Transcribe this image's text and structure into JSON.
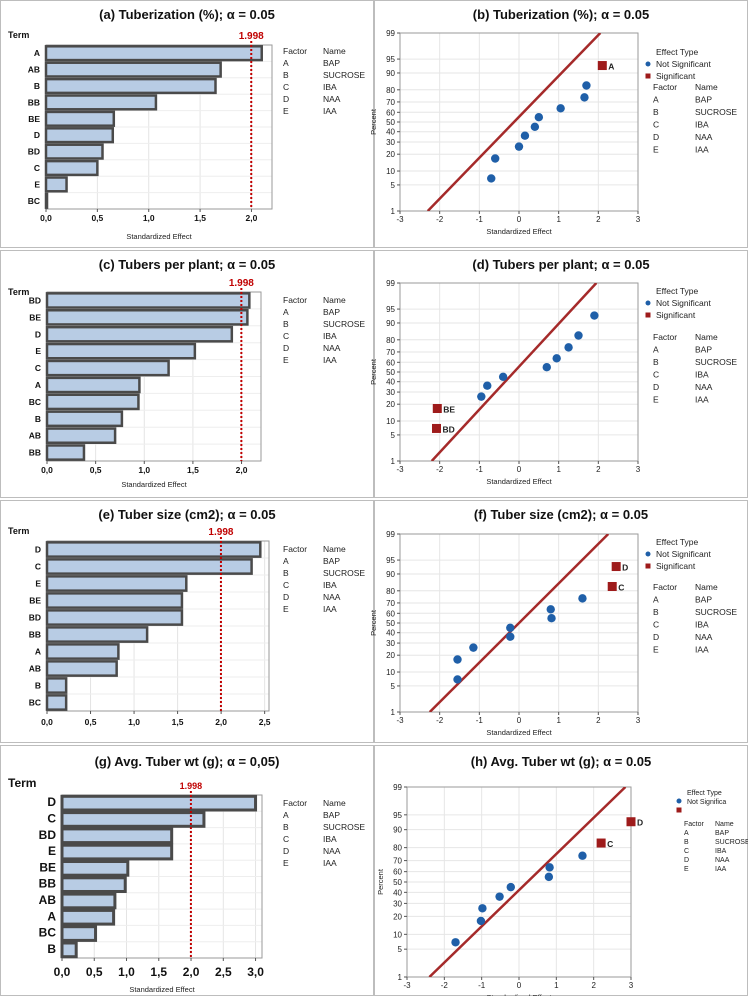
{
  "factors": [
    {
      "factor": "A",
      "name": "BAP"
    },
    {
      "factor": "B",
      "name": "SUCROSE"
    },
    {
      "factor": "C",
      "name": "IBA"
    },
    {
      "factor": "D",
      "name": "NAA"
    },
    {
      "factor": "E",
      "name": "IAA"
    }
  ],
  "legend_header": {
    "factor": "Factor",
    "name": "Name"
  },
  "effect_type": {
    "title": "Effect Type",
    "not_significant": "Not Significant",
    "not_significant_short": "Not Significa",
    "significant": "Significant"
  },
  "colors": {
    "bar_fill": "#b8cce4",
    "bar_stroke": "#4a4a4a",
    "ref_line": "#c00000",
    "fit_line": "#a52a2a",
    "point": "#1f5fa8",
    "sig_point": "#9e1b1b"
  },
  "chart_data": [
    {
      "id": "a",
      "type": "bar",
      "orientation": "horizontal",
      "title": "(a) Tuberization (%); α = 0.05",
      "xlabel": "Standardized Effect",
      "ylabel": "Term",
      "categories": [
        "A",
        "AB",
        "B",
        "BB",
        "BE",
        "D",
        "BD",
        "C",
        "E",
        "BC"
      ],
      "values": [
        2.1,
        1.7,
        1.65,
        1.07,
        0.66,
        0.65,
        0.55,
        0.5,
        0.2,
        0.01
      ],
      "xlim": [
        0,
        2.2
      ],
      "xticks": [
        0,
        0.5,
        1,
        1.5,
        2
      ],
      "xtick_labels": [
        "0,0",
        "0,5",
        "1,0",
        "1,5",
        "2,0"
      ],
      "reference": 1.998,
      "reference_label": "1.998"
    },
    {
      "id": "b",
      "type": "scatter",
      "subtype": "normal-probability",
      "title": "(b) Tuberization (%); α = 0.05",
      "xlabel": "Standardized Effect",
      "ylabel": "Percent",
      "xlim": [
        -3,
        3
      ],
      "xticks": [
        -3,
        -2,
        -1,
        0,
        1,
        2,
        3
      ],
      "yticks": [
        1,
        5,
        10,
        20,
        30,
        40,
        50,
        60,
        70,
        80,
        90,
        95,
        99
      ],
      "not_significant": [
        {
          "x": -0.7,
          "p": 7
        },
        {
          "x": -0.6,
          "p": 17
        },
        {
          "x": 0,
          "p": 26
        },
        {
          "x": 0.15,
          "p": 36
        },
        {
          "x": 0.4,
          "p": 45
        },
        {
          "x": 0.5,
          "p": 55
        },
        {
          "x": 1.05,
          "p": 64
        },
        {
          "x": 1.65,
          "p": 74
        },
        {
          "x": 1.7,
          "p": 83
        }
      ],
      "significant": [
        {
          "x": 2.1,
          "p": 93,
          "label": "A"
        }
      ],
      "fit_line": [
        {
          "x": -2.3,
          "p": 1
        },
        {
          "x": 2.05,
          "p": 99
        }
      ]
    },
    {
      "id": "c",
      "type": "bar",
      "orientation": "horizontal",
      "title": "(c) Tubers per plant; α = 0.05",
      "xlabel": "Standardized Effect",
      "ylabel": "Term",
      "categories": [
        "BD",
        "BE",
        "D",
        "E",
        "C",
        "A",
        "BC",
        "B",
        "AB",
        "BB"
      ],
      "values": [
        2.08,
        2.06,
        1.9,
        1.52,
        1.25,
        0.95,
        0.94,
        0.77,
        0.7,
        0.38
      ],
      "xlim": [
        0,
        2.2
      ],
      "xticks": [
        0,
        0.5,
        1,
        1.5,
        2
      ],
      "xtick_labels": [
        "0,0",
        "0,5",
        "1,0",
        "1,5",
        "2,0"
      ],
      "reference": 1.998,
      "reference_label": "1.998"
    },
    {
      "id": "d",
      "type": "scatter",
      "subtype": "normal-probability",
      "title": "(d) Tubers per plant; α = 0.05",
      "xlabel": "Standardized Effect",
      "ylabel": "Percent",
      "xlim": [
        -3,
        3
      ],
      "xticks": [
        -3,
        -2,
        -1,
        0,
        1,
        2,
        3
      ],
      "yticks": [
        1,
        5,
        10,
        20,
        30,
        40,
        50,
        60,
        70,
        80,
        90,
        95,
        99
      ],
      "not_significant": [
        {
          "x": -0.95,
          "p": 26
        },
        {
          "x": -0.8,
          "p": 36
        },
        {
          "x": -0.4,
          "p": 45
        },
        {
          "x": 0.7,
          "p": 55
        },
        {
          "x": 0.95,
          "p": 64
        },
        {
          "x": 1.25,
          "p": 74
        },
        {
          "x": 1.5,
          "p": 83
        },
        {
          "x": 1.9,
          "p": 93
        }
      ],
      "significant": [
        {
          "x": -2.06,
          "p": 17,
          "label": "BE"
        },
        {
          "x": -2.08,
          "p": 7,
          "label": "BD"
        }
      ],
      "fit_line": [
        {
          "x": -2.2,
          "p": 1
        },
        {
          "x": 1.95,
          "p": 99
        }
      ]
    },
    {
      "id": "e",
      "type": "bar",
      "orientation": "horizontal",
      "title": "(e) Tuber size (cm2); α = 0.05",
      "xlabel": "",
      "ylabel": "Term",
      "categories": [
        "D",
        "C",
        "E",
        "BE",
        "BD",
        "BB",
        "A",
        "AB",
        "B",
        "BC"
      ],
      "values": [
        2.45,
        2.35,
        1.6,
        1.55,
        1.55,
        1.15,
        0.82,
        0.8,
        0.22,
        0.22
      ],
      "xlim": [
        0,
        2.55
      ],
      "xticks": [
        0,
        0.5,
        1,
        1.5,
        2,
        2.5
      ],
      "xtick_labels": [
        "0,0",
        "0,5",
        "1,0",
        "1,5",
        "2,0",
        "2,5"
      ],
      "reference": 1.998,
      "reference_label": "1.998"
    },
    {
      "id": "f",
      "type": "scatter",
      "subtype": "normal-probability",
      "title": "(f) Tuber size (cm2); α = 0.05",
      "xlabel": "Standardized Effect",
      "ylabel": "Percent",
      "xlim": [
        -3,
        3
      ],
      "xticks": [
        -3,
        -2,
        -1,
        0,
        1,
        2,
        3
      ],
      "yticks": [
        1,
        5,
        10,
        20,
        30,
        40,
        50,
        60,
        70,
        80,
        90,
        95,
        99
      ],
      "not_significant": [
        {
          "x": -1.55,
          "p": 7
        },
        {
          "x": -1.55,
          "p": 17
        },
        {
          "x": -1.15,
          "p": 26
        },
        {
          "x": -0.22,
          "p": 36
        },
        {
          "x": -0.22,
          "p": 45
        },
        {
          "x": 0.82,
          "p": 55
        },
        {
          "x": 0.8,
          "p": 64
        },
        {
          "x": 1.6,
          "p": 74
        }
      ],
      "significant": [
        {
          "x": 2.35,
          "p": 83,
          "label": "C"
        },
        {
          "x": 2.45,
          "p": 93,
          "label": "D"
        }
      ],
      "fit_line": [
        {
          "x": -2.25,
          "p": 1
        },
        {
          "x": 2.25,
          "p": 99
        }
      ]
    },
    {
      "id": "g",
      "type": "bar",
      "orientation": "horizontal",
      "title": "(g) Avg. Tuber wt (g); α = 0,05)",
      "xlabel": "Standardized Effect",
      "ylabel": "Term",
      "categories": [
        "D",
        "C",
        "BD",
        "E",
        "BE",
        "BB",
        "AB",
        "A",
        "BC",
        "B"
      ],
      "values": [
        3.0,
        2.2,
        1.7,
        1.7,
        1.02,
        0.98,
        0.82,
        0.8,
        0.52,
        0.22
      ],
      "xlim": [
        0,
        3.1
      ],
      "xticks": [
        0,
        0.5,
        1,
        1.5,
        2,
        2.5,
        3
      ],
      "xtick_labels": [
        "0,0",
        "0,5",
        "1,0",
        "1,5",
        "2,0",
        "2,5",
        "3,0"
      ],
      "reference": 1.998,
      "reference_label": "1.998"
    },
    {
      "id": "h",
      "type": "scatter",
      "subtype": "normal-probability",
      "title": "(h) Avg. Tuber wt (g); α = 0.05",
      "xlabel": "Standardized Effect",
      "ylabel": "Percent",
      "xlim": [
        -3,
        3
      ],
      "xticks": [
        -3,
        -2,
        -1,
        0,
        1,
        2,
        3
      ],
      "yticks": [
        1,
        5,
        10,
        20,
        30,
        40,
        50,
        60,
        70,
        80,
        90,
        95,
        99
      ],
      "not_significant": [
        {
          "x": -1.7,
          "p": 7
        },
        {
          "x": -1.02,
          "p": 17
        },
        {
          "x": -0.98,
          "p": 26
        },
        {
          "x": -0.52,
          "p": 36
        },
        {
          "x": -0.22,
          "p": 45
        },
        {
          "x": 0.8,
          "p": 55
        },
        {
          "x": 0.82,
          "p": 64
        },
        {
          "x": 1.7,
          "p": 74
        }
      ],
      "significant": [
        {
          "x": 2.2,
          "p": 83,
          "label": "C"
        },
        {
          "x": 3.0,
          "p": 93,
          "label": "D"
        }
      ],
      "fit_line": [
        {
          "x": -2.4,
          "p": 1
        },
        {
          "x": 2.85,
          "p": 99
        }
      ]
    }
  ]
}
